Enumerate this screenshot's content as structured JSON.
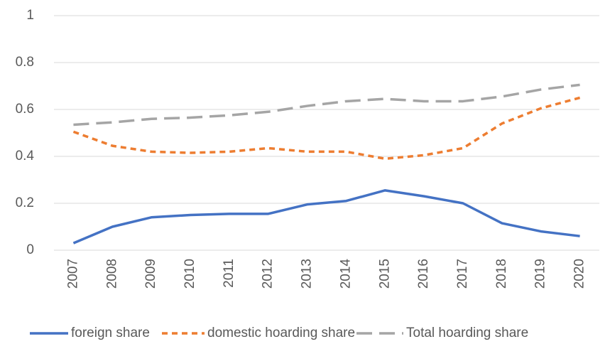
{
  "chart_data": {
    "type": "line",
    "categories": [
      "2007",
      "2008",
      "2009",
      "2010",
      "2011",
      "2012",
      "2013",
      "2014",
      "2015",
      "2016",
      "2017",
      "2018",
      "2019",
      "2020"
    ],
    "series": [
      {
        "name": "foreign share",
        "color": "#4472c4",
        "values": [
          0.03,
          0.1,
          0.14,
          0.15,
          0.155,
          0.155,
          0.195,
          0.21,
          0.255,
          0.23,
          0.2,
          0.115,
          0.08,
          0.06
        ]
      },
      {
        "name": "domestic hoarding share",
        "color": "#ed7d31",
        "values": [
          0.505,
          0.445,
          0.42,
          0.415,
          0.42,
          0.435,
          0.42,
          0.42,
          0.39,
          0.405,
          0.435,
          0.54,
          0.605,
          0.65
        ]
      },
      {
        "name": "Total hoarding share",
        "color": "#a5a5a5",
        "values": [
          0.535,
          0.545,
          0.56,
          0.565,
          0.575,
          0.59,
          0.615,
          0.635,
          0.645,
          0.635,
          0.635,
          0.655,
          0.685,
          0.705
        ]
      }
    ],
    "ylim": [
      0,
      1
    ],
    "yticks": [
      0,
      0.2,
      0.4,
      0.6,
      0.8,
      1
    ],
    "grid": true,
    "legend": "bottom"
  }
}
